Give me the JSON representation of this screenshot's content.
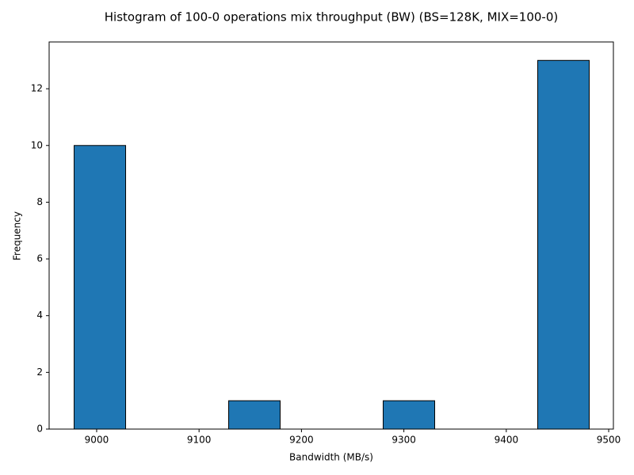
{
  "chart_data": {
    "type": "histogram",
    "title": "Histogram of 100-0 operations mix throughput (BW) (BS=128K, MIX=100-0)",
    "x_label": "Bandwidth (MB/s)",
    "y_label": "Frequency",
    "bins": [
      8978,
      9028.3,
      9078.6,
      9128.9,
      9179.2,
      9229.5,
      9279.8,
      9330.1,
      9380.4,
      9430.7,
      9481
    ],
    "values": [
      10,
      0,
      0,
      1,
      0,
      0,
      1,
      0,
      0,
      13
    ],
    "color": "#1f77b4",
    "edgecolor": "#000000",
    "xlim": [
      8953.6,
      9504.6
    ],
    "ylim": [
      0,
      13.65
    ],
    "xticks": [
      9000,
      9100,
      9200,
      9300,
      9400,
      9500
    ],
    "yticks": [
      0,
      2,
      4,
      6,
      8,
      10,
      12
    ],
    "grid": false
  }
}
